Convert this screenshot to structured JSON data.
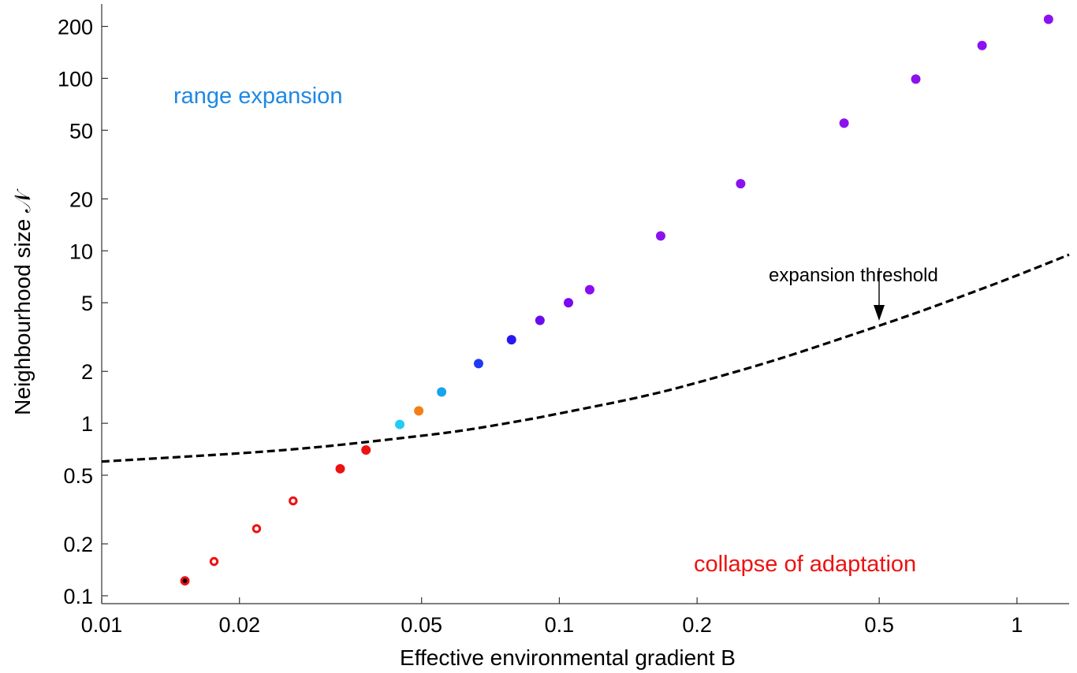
{
  "chart_data": {
    "type": "scatter",
    "title": "",
    "xlabel": "Effective environmental gradient  B",
    "ylabel": "Neighbourhood size 𝒩",
    "xscale": "log",
    "yscale": "log",
    "xlim": [
      0.01,
      1.3
    ],
    "ylim": [
      0.09,
      270
    ],
    "grid": false,
    "legend": "none",
    "x_ticks": [
      {
        "value": 0.01,
        "label": "0.01"
      },
      {
        "value": 0.02,
        "label": "0.02"
      },
      {
        "value": 0.05,
        "label": "0.05"
      },
      {
        "value": 0.1,
        "label": "0.1"
      },
      {
        "value": 0.2,
        "label": "0.2"
      },
      {
        "value": 0.5,
        "label": "0.5"
      },
      {
        "value": 1,
        "label": "1"
      }
    ],
    "y_ticks": [
      {
        "value": 0.1,
        "label": "0.1"
      },
      {
        "value": 0.2,
        "label": "0.2"
      },
      {
        "value": 0.5,
        "label": "0.5"
      },
      {
        "value": 1,
        "label": "1"
      },
      {
        "value": 2,
        "label": "2"
      },
      {
        "value": 5,
        "label": "5"
      },
      {
        "value": 10,
        "label": "10"
      },
      {
        "value": 20,
        "label": "20"
      },
      {
        "value": 50,
        "label": "50"
      },
      {
        "value": 100,
        "label": "100"
      },
      {
        "value": 200,
        "label": "200"
      }
    ],
    "points": [
      {
        "x": 0.0152,
        "y": 0.122,
        "color": "#ee1111",
        "style": "ring-dot"
      },
      {
        "x": 0.0176,
        "y": 0.158,
        "color": "#ee1111",
        "style": "open"
      },
      {
        "x": 0.0218,
        "y": 0.245,
        "color": "#ee1111",
        "style": "open"
      },
      {
        "x": 0.0262,
        "y": 0.355,
        "color": "#ee1111",
        "style": "open"
      },
      {
        "x": 0.0332,
        "y": 0.545,
        "color": "#ee1111",
        "style": "filled"
      },
      {
        "x": 0.0378,
        "y": 0.7,
        "color": "#ee1111",
        "style": "filled"
      },
      {
        "x": 0.0448,
        "y": 0.985,
        "color": "#22ccf2",
        "style": "filled"
      },
      {
        "x": 0.0493,
        "y": 1.18,
        "color": "#f57f17",
        "style": "filled"
      },
      {
        "x": 0.0553,
        "y": 1.52,
        "color": "#16a4ee",
        "style": "filled"
      },
      {
        "x": 0.0666,
        "y": 2.22,
        "color": "#1f39f2",
        "style": "filled"
      },
      {
        "x": 0.0786,
        "y": 3.05,
        "color": "#2817f0",
        "style": "filled"
      },
      {
        "x": 0.0907,
        "y": 3.95,
        "color": "#6a0bf0",
        "style": "filled"
      },
      {
        "x": 0.1047,
        "y": 5.0,
        "color": "#7a0af0",
        "style": "filled"
      },
      {
        "x": 0.1165,
        "y": 5.95,
        "color": "#8a0ef0",
        "style": "filled"
      },
      {
        "x": 0.1665,
        "y": 12.2,
        "color": "#8b12ee",
        "style": "filled"
      },
      {
        "x": 0.249,
        "y": 24.5,
        "color": "#8b12ee",
        "style": "filled"
      },
      {
        "x": 0.419,
        "y": 55.0,
        "color": "#8b12ee",
        "style": "filled"
      },
      {
        "x": 0.601,
        "y": 99.0,
        "color": "#8b12ee",
        "style": "filled"
      },
      {
        "x": 0.839,
        "y": 155.0,
        "color": "#8b12ee",
        "style": "filled"
      },
      {
        "x": 1.172,
        "y": 220.0,
        "color": "#8b12ee",
        "style": "filled"
      }
    ],
    "threshold_curve": {
      "label": "expansion threshold",
      "style": "dashed",
      "color": "#000000",
      "x": [
        0.01,
        0.02,
        0.03,
        0.045,
        0.06,
        0.08,
        0.1,
        0.15,
        0.2,
        0.3,
        0.45,
        0.6,
        0.8,
        1.0,
        1.3
      ],
      "y": [
        0.6,
        0.67,
        0.73,
        0.82,
        0.9,
        1.02,
        1.14,
        1.42,
        1.72,
        2.35,
        3.35,
        4.35,
        5.75,
        7.2,
        9.5
      ]
    },
    "annotations": [
      {
        "text": "range expansion",
        "color": "#1e88e5"
      },
      {
        "text": "collapse of adaptation",
        "color": "#ee1111"
      }
    ]
  }
}
